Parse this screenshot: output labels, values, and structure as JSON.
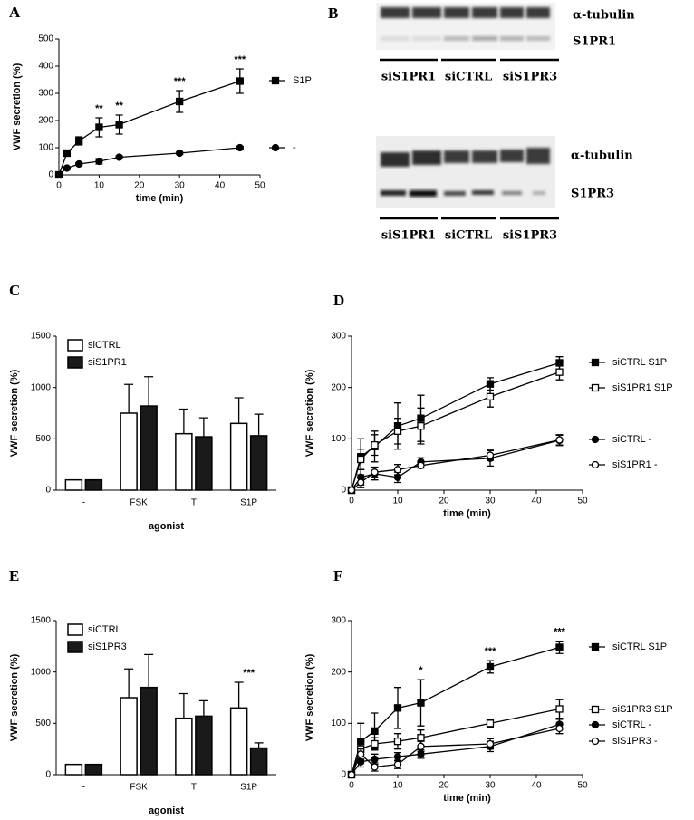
{
  "chart_data": [
    {
      "panel": "A",
      "type": "line",
      "xlabel": "time (min)",
      "ylabel": "VWF secretion (%)",
      "x": [
        0,
        2,
        5,
        10,
        15,
        30,
        45
      ],
      "xlim": [
        0,
        50
      ],
      "xticks": [
        0,
        10,
        20,
        30,
        40,
        50
      ],
      "ylim": [
        0,
        500
      ],
      "yticks": [
        0,
        100,
        200,
        300,
        400,
        500
      ],
      "series": [
        {
          "name": "S1P",
          "color": "#000000",
          "marker": "square",
          "filled": true,
          "values": [
            0,
            80,
            125,
            175,
            185,
            270,
            345
          ],
          "errors": [
            0,
            5,
            15,
            35,
            35,
            40,
            45
          ]
        },
        {
          "name": "-",
          "color": "#000000",
          "marker": "circle",
          "filled": true,
          "values": [
            0,
            25,
            40,
            50,
            65,
            80,
            100
          ],
          "errors": [
            0,
            5,
            5,
            10,
            5,
            5,
            5
          ]
        }
      ],
      "annotations": [
        {
          "x": 10,
          "text": "**"
        },
        {
          "x": 15,
          "text": "**"
        },
        {
          "x": 30,
          "text": "***"
        },
        {
          "x": 45,
          "text": "***"
        }
      ]
    },
    {
      "panel": "C",
      "type": "bar",
      "xlabel": "agonist",
      "ylabel": "VWF secretion (%)",
      "categories": [
        "-",
        "FSK",
        "T",
        "S1P"
      ],
      "ylim": [
        0,
        1500
      ],
      "yticks": [
        0,
        500,
        1000,
        1500
      ],
      "series": [
        {
          "name": "siCTRL",
          "color": "#ffffff",
          "values": [
            100,
            750,
            550,
            650
          ],
          "errors": [
            0,
            280,
            240,
            250
          ]
        },
        {
          "name": "siS1PR1",
          "color": "#1a1a1a",
          "values": [
            100,
            820,
            520,
            530
          ],
          "errors": [
            0,
            285,
            185,
            210
          ]
        }
      ],
      "annotations": []
    },
    {
      "panel": "D",
      "type": "line",
      "xlabel": "time (min)",
      "ylabel": "VWF secretion (%)",
      "x": [
        0,
        2,
        5,
        10,
        15,
        30,
        45
      ],
      "xlim": [
        0,
        50
      ],
      "xticks": [
        0,
        10,
        20,
        30,
        40,
        50
      ],
      "ylim": [
        0,
        300
      ],
      "yticks": [
        0,
        100,
        200,
        300
      ],
      "series": [
        {
          "name": "siCTRL S1P",
          "color": "#000000",
          "marker": "square",
          "filled": true,
          "values": [
            0,
            65,
            85,
            125,
            140,
            207,
            248
          ],
          "errors": [
            0,
            35,
            30,
            45,
            45,
            12,
            12
          ]
        },
        {
          "name": "siS1PR1 S1P",
          "color": "#000000",
          "marker": "square",
          "filled": false,
          "values": [
            0,
            60,
            88,
            115,
            125,
            182,
            230
          ],
          "errors": [
            0,
            20,
            20,
            25,
            35,
            20,
            15
          ]
        },
        {
          "name": "siCTRL -",
          "color": "#000000",
          "marker": "circle",
          "filled": true,
          "values": [
            0,
            25,
            32,
            25,
            55,
            62,
            97
          ],
          "errors": [
            0,
            15,
            12,
            10,
            8,
            15,
            10
          ]
        },
        {
          "name": "siS1PR1 -",
          "color": "#000000",
          "marker": "circle",
          "filled": false,
          "values": [
            0,
            15,
            35,
            40,
            48,
            68,
            98
          ],
          "errors": [
            0,
            10,
            10,
            10,
            5,
            10,
            10
          ]
        }
      ],
      "annotations": []
    },
    {
      "panel": "E",
      "type": "bar",
      "xlabel": "agonist",
      "ylabel": "VWF secretion (%)",
      "categories": [
        "-",
        "FSK",
        "T",
        "S1P"
      ],
      "ylim": [
        0,
        1500
      ],
      "yticks": [
        0,
        500,
        1000,
        1500
      ],
      "series": [
        {
          "name": "siCTRL",
          "color": "#ffffff",
          "values": [
            100,
            750,
            550,
            650
          ],
          "errors": [
            0,
            280,
            240,
            250
          ]
        },
        {
          "name": "siS1PR3",
          "color": "#1a1a1a",
          "values": [
            100,
            850,
            570,
            260
          ],
          "errors": [
            0,
            320,
            150,
            50
          ]
        }
      ],
      "annotations": [
        {
          "x": "S1P",
          "text": "***"
        }
      ]
    },
    {
      "panel": "F",
      "type": "line",
      "xlabel": "time (min)",
      "ylabel": "VWF secretion (%)",
      "x": [
        0,
        2,
        5,
        10,
        15,
        30,
        45
      ],
      "xlim": [
        0,
        50
      ],
      "xticks": [
        0,
        10,
        20,
        30,
        40,
        50
      ],
      "ylim": [
        0,
        300
      ],
      "yticks": [
        0,
        100,
        200,
        300
      ],
      "series": [
        {
          "name": "siCTRL S1P",
          "color": "#000000",
          "marker": "square",
          "filled": true,
          "values": [
            0,
            65,
            85,
            130,
            140,
            210,
            248
          ],
          "errors": [
            0,
            35,
            35,
            40,
            45,
            12,
            12
          ]
        },
        {
          "name": "siS1PR3 S1P",
          "color": "#000000",
          "marker": "square",
          "filled": false,
          "values": [
            0,
            50,
            60,
            65,
            72,
            100,
            128
          ],
          "errors": [
            0,
            15,
            12,
            15,
            15,
            8,
            18
          ]
        },
        {
          "name": "siCTRL -",
          "color": "#000000",
          "marker": "circle",
          "filled": true,
          "values": [
            0,
            25,
            30,
            35,
            40,
            55,
            98
          ],
          "errors": [
            0,
            10,
            10,
            8,
            8,
            10,
            10
          ]
        },
        {
          "name": "siS1PR3 -",
          "color": "#000000",
          "marker": "circle",
          "filled": false,
          "values": [
            0,
            40,
            15,
            20,
            55,
            60,
            90
          ],
          "errors": [
            0,
            10,
            8,
            8,
            10,
            10,
            10
          ]
        }
      ],
      "annotations": [
        {
          "x": 15,
          "text": "*"
        },
        {
          "x": 30,
          "text": "***"
        },
        {
          "x": 45,
          "text": "***"
        }
      ]
    }
  ],
  "blots": [
    {
      "panel": "B",
      "rows": [
        "α-tubulin",
        "S1PR1"
      ],
      "lanes": [
        "siS1PR1",
        "siCTRL",
        "siS1PR3"
      ]
    },
    {
      "rows": [
        "α-tubulin",
        "S1PR3"
      ],
      "lanes": [
        "siS1PR1",
        "siCTRL",
        "siS1PR3"
      ]
    }
  ]
}
